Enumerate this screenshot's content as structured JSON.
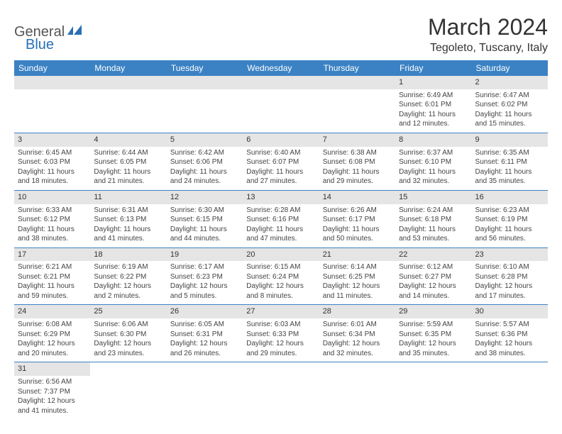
{
  "logo": {
    "general": "General",
    "blue": "Blue"
  },
  "title": "March 2024",
  "location": "Tegoleto, Tuscany, Italy",
  "colors": {
    "header_bg": "#3b82c4",
    "header_text": "#ffffff",
    "daynum_bg": "#e5e5e5",
    "row_border": "#3b82c4",
    "text": "#444444",
    "logo_blue": "#2a6fb5"
  },
  "typography": {
    "title_fontsize": 32,
    "location_fontsize": 16,
    "dayheader_fontsize": 12,
    "daynum_fontsize": 11,
    "info_fontsize": 10
  },
  "day_headers": [
    "Sunday",
    "Monday",
    "Tuesday",
    "Wednesday",
    "Thursday",
    "Friday",
    "Saturday"
  ],
  "weeks": [
    [
      null,
      null,
      null,
      null,
      null,
      {
        "n": "1",
        "sr": "Sunrise: 6:49 AM",
        "ss": "Sunset: 6:01 PM",
        "dl": "Daylight: 11 hours and 12 minutes."
      },
      {
        "n": "2",
        "sr": "Sunrise: 6:47 AM",
        "ss": "Sunset: 6:02 PM",
        "dl": "Daylight: 11 hours and 15 minutes."
      }
    ],
    [
      {
        "n": "3",
        "sr": "Sunrise: 6:45 AM",
        "ss": "Sunset: 6:03 PM",
        "dl": "Daylight: 11 hours and 18 minutes."
      },
      {
        "n": "4",
        "sr": "Sunrise: 6:44 AM",
        "ss": "Sunset: 6:05 PM",
        "dl": "Daylight: 11 hours and 21 minutes."
      },
      {
        "n": "5",
        "sr": "Sunrise: 6:42 AM",
        "ss": "Sunset: 6:06 PM",
        "dl": "Daylight: 11 hours and 24 minutes."
      },
      {
        "n": "6",
        "sr": "Sunrise: 6:40 AM",
        "ss": "Sunset: 6:07 PM",
        "dl": "Daylight: 11 hours and 27 minutes."
      },
      {
        "n": "7",
        "sr": "Sunrise: 6:38 AM",
        "ss": "Sunset: 6:08 PM",
        "dl": "Daylight: 11 hours and 29 minutes."
      },
      {
        "n": "8",
        "sr": "Sunrise: 6:37 AM",
        "ss": "Sunset: 6:10 PM",
        "dl": "Daylight: 11 hours and 32 minutes."
      },
      {
        "n": "9",
        "sr": "Sunrise: 6:35 AM",
        "ss": "Sunset: 6:11 PM",
        "dl": "Daylight: 11 hours and 35 minutes."
      }
    ],
    [
      {
        "n": "10",
        "sr": "Sunrise: 6:33 AM",
        "ss": "Sunset: 6:12 PM",
        "dl": "Daylight: 11 hours and 38 minutes."
      },
      {
        "n": "11",
        "sr": "Sunrise: 6:31 AM",
        "ss": "Sunset: 6:13 PM",
        "dl": "Daylight: 11 hours and 41 minutes."
      },
      {
        "n": "12",
        "sr": "Sunrise: 6:30 AM",
        "ss": "Sunset: 6:15 PM",
        "dl": "Daylight: 11 hours and 44 minutes."
      },
      {
        "n": "13",
        "sr": "Sunrise: 6:28 AM",
        "ss": "Sunset: 6:16 PM",
        "dl": "Daylight: 11 hours and 47 minutes."
      },
      {
        "n": "14",
        "sr": "Sunrise: 6:26 AM",
        "ss": "Sunset: 6:17 PM",
        "dl": "Daylight: 11 hours and 50 minutes."
      },
      {
        "n": "15",
        "sr": "Sunrise: 6:24 AM",
        "ss": "Sunset: 6:18 PM",
        "dl": "Daylight: 11 hours and 53 minutes."
      },
      {
        "n": "16",
        "sr": "Sunrise: 6:23 AM",
        "ss": "Sunset: 6:19 PM",
        "dl": "Daylight: 11 hours and 56 minutes."
      }
    ],
    [
      {
        "n": "17",
        "sr": "Sunrise: 6:21 AM",
        "ss": "Sunset: 6:21 PM",
        "dl": "Daylight: 11 hours and 59 minutes."
      },
      {
        "n": "18",
        "sr": "Sunrise: 6:19 AM",
        "ss": "Sunset: 6:22 PM",
        "dl": "Daylight: 12 hours and 2 minutes."
      },
      {
        "n": "19",
        "sr": "Sunrise: 6:17 AM",
        "ss": "Sunset: 6:23 PM",
        "dl": "Daylight: 12 hours and 5 minutes."
      },
      {
        "n": "20",
        "sr": "Sunrise: 6:15 AM",
        "ss": "Sunset: 6:24 PM",
        "dl": "Daylight: 12 hours and 8 minutes."
      },
      {
        "n": "21",
        "sr": "Sunrise: 6:14 AM",
        "ss": "Sunset: 6:25 PM",
        "dl": "Daylight: 12 hours and 11 minutes."
      },
      {
        "n": "22",
        "sr": "Sunrise: 6:12 AM",
        "ss": "Sunset: 6:27 PM",
        "dl": "Daylight: 12 hours and 14 minutes."
      },
      {
        "n": "23",
        "sr": "Sunrise: 6:10 AM",
        "ss": "Sunset: 6:28 PM",
        "dl": "Daylight: 12 hours and 17 minutes."
      }
    ],
    [
      {
        "n": "24",
        "sr": "Sunrise: 6:08 AM",
        "ss": "Sunset: 6:29 PM",
        "dl": "Daylight: 12 hours and 20 minutes."
      },
      {
        "n": "25",
        "sr": "Sunrise: 6:06 AM",
        "ss": "Sunset: 6:30 PM",
        "dl": "Daylight: 12 hours and 23 minutes."
      },
      {
        "n": "26",
        "sr": "Sunrise: 6:05 AM",
        "ss": "Sunset: 6:31 PM",
        "dl": "Daylight: 12 hours and 26 minutes."
      },
      {
        "n": "27",
        "sr": "Sunrise: 6:03 AM",
        "ss": "Sunset: 6:33 PM",
        "dl": "Daylight: 12 hours and 29 minutes."
      },
      {
        "n": "28",
        "sr": "Sunrise: 6:01 AM",
        "ss": "Sunset: 6:34 PM",
        "dl": "Daylight: 12 hours and 32 minutes."
      },
      {
        "n": "29",
        "sr": "Sunrise: 5:59 AM",
        "ss": "Sunset: 6:35 PM",
        "dl": "Daylight: 12 hours and 35 minutes."
      },
      {
        "n": "30",
        "sr": "Sunrise: 5:57 AM",
        "ss": "Sunset: 6:36 PM",
        "dl": "Daylight: 12 hours and 38 minutes."
      }
    ],
    [
      {
        "n": "31",
        "sr": "Sunrise: 6:56 AM",
        "ss": "Sunset: 7:37 PM",
        "dl": "Daylight: 12 hours and 41 minutes."
      },
      null,
      null,
      null,
      null,
      null,
      null
    ]
  ]
}
